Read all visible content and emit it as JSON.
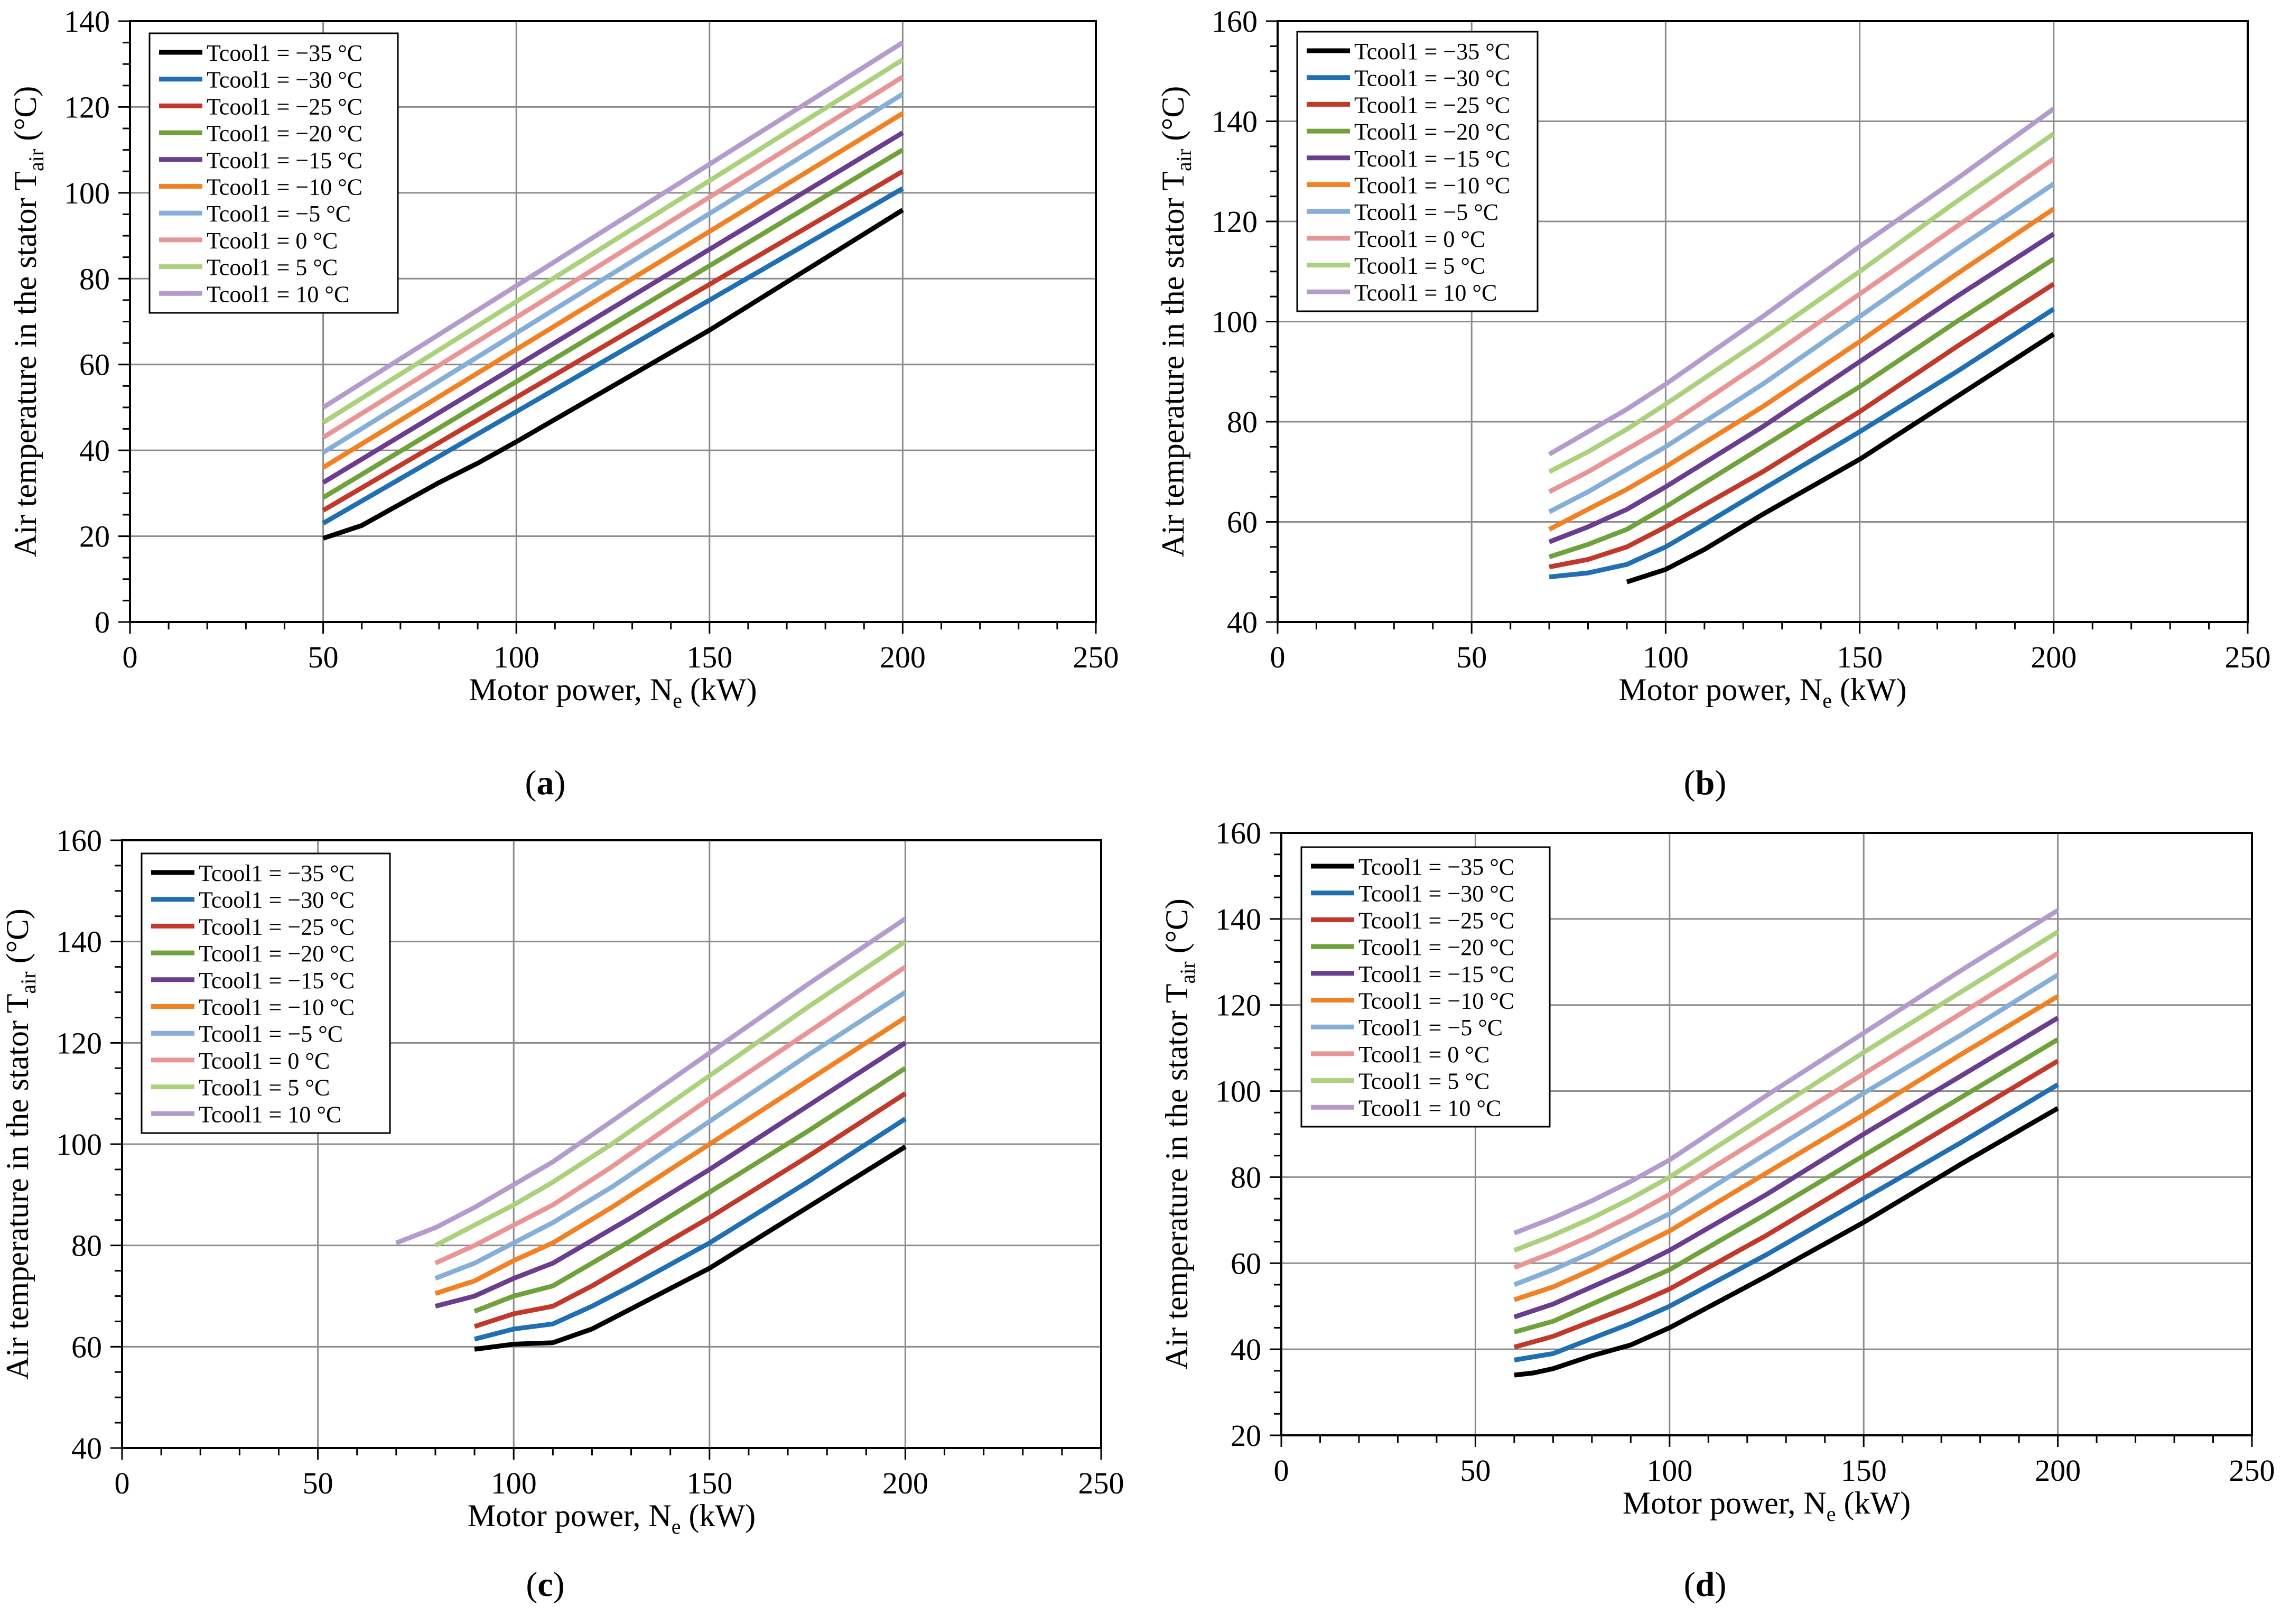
{
  "figure": {
    "legend_labels": [
      "Tcool1 = −35 °C",
      "Tcool1 = −30 °C",
      "Tcool1 = −25 °C",
      "Tcool1 = −20 °C",
      "Tcool1 = −15 °C",
      "Tcool1 = −10 °C",
      "Tcool1 = −5 °C",
      "Tcool1 = 0 °C",
      "Tcool1 = 5 °C",
      "Tcool1 = 10 °C"
    ],
    "series_colors": [
      "#000000",
      "#1f6fb2",
      "#c0392b",
      "#70a23c",
      "#6a3d8f",
      "#f08124",
      "#86aed6",
      "#e89596",
      "#abd17e",
      "#b39ccb"
    ]
  },
  "chart_data": [
    {
      "type": "line",
      "panel_label": "(a)",
      "xlabel_main": "Motor power, N",
      "xlabel_sub": "e",
      "xlabel_tail": " (kW)",
      "ylabel_main": "Air temperature in the stator T",
      "ylabel_sub": "air",
      "ylabel_tail": " (°C)",
      "xlim": [
        0,
        250
      ],
      "ylim": [
        0,
        140
      ],
      "xticks": [
        0,
        50,
        100,
        150,
        200,
        250
      ],
      "yticks": [
        0,
        20,
        40,
        60,
        80,
        100,
        120,
        140
      ],
      "xtick_labels": [
        "0",
        "50",
        "100",
        "150",
        "200",
        "250"
      ],
      "ytick_labels": [
        "0",
        "20",
        "40",
        "60",
        "80",
        "100",
        "120",
        "140"
      ],
      "grid": true,
      "legend_position": "top-left",
      "series": [
        {
          "name": "Tcool1 = −35 °C",
          "x": [
            50,
            60,
            70,
            80,
            90,
            100,
            125,
            150,
            175,
            200
          ],
          "y": [
            19.5,
            22.5,
            27.5,
            32.5,
            37.0,
            42.0,
            55.0,
            68.0,
            82.0,
            96.0
          ]
        },
        {
          "name": "Tcool1 = −30 °C",
          "x": [
            50,
            200
          ],
          "y": [
            23,
            101
          ]
        },
        {
          "name": "Tcool1 = −25 °C",
          "x": [
            50,
            200
          ],
          "y": [
            26,
            105
          ]
        },
        {
          "name": "Tcool1 = −20 °C",
          "x": [
            50,
            200
          ],
          "y": [
            29,
            110
          ]
        },
        {
          "name": "Tcool1 = −15 °C",
          "x": [
            50,
            200
          ],
          "y": [
            32.5,
            114
          ]
        },
        {
          "name": "Tcool1 = −10 °C",
          "x": [
            50,
            200
          ],
          "y": [
            36,
            118.5
          ]
        },
        {
          "name": "Tcool1 = −5 °C",
          "x": [
            50,
            200
          ],
          "y": [
            39.5,
            123
          ]
        },
        {
          "name": "Tcool1 = 0 °C",
          "x": [
            50,
            200
          ],
          "y": [
            43,
            127
          ]
        },
        {
          "name": "Tcool1 = 5 °C",
          "x": [
            50,
            200
          ],
          "y": [
            46.5,
            131
          ]
        },
        {
          "name": "Tcool1 = 10 °C",
          "x": [
            50,
            200
          ],
          "y": [
            50,
            135
          ]
        }
      ]
    },
    {
      "type": "line",
      "panel_label": "(b)",
      "xlabel_main": "Motor power, N",
      "xlabel_sub": "e",
      "xlabel_tail": " (kW)",
      "ylabel_main": "Air temperature in the stator T",
      "ylabel_sub": "air",
      "ylabel_tail": " (°C)",
      "xlim": [
        0,
        250
      ],
      "ylim": [
        40,
        160
      ],
      "xticks": [
        0,
        50,
        100,
        150,
        200,
        250
      ],
      "yticks": [
        40,
        60,
        80,
        100,
        120,
        140,
        160
      ],
      "xtick_labels": [
        "0",
        "50",
        "100",
        "150",
        "200",
        "250"
      ],
      "ytick_labels": [
        "40",
        "60",
        "80",
        "100",
        "120",
        "140",
        "160"
      ],
      "grid": true,
      "legend_position": "top-left",
      "series": [
        {
          "name": "Tcool1 = −35 °C",
          "x": [
            90,
            100,
            110,
            125,
            150,
            175,
            200
          ],
          "y": [
            48,
            50.5,
            54.5,
            61.5,
            72.5,
            85,
            97.5
          ]
        },
        {
          "name": "Tcool1 = −30 °C",
          "x": [
            70,
            80,
            90,
            100,
            110,
            125,
            150,
            175,
            200
          ],
          "y": [
            49,
            49.8,
            51.5,
            55,
            59.5,
            66.5,
            78,
            90,
            102.5
          ]
        },
        {
          "name": "Tcool1 = −25 °C",
          "x": [
            70,
            80,
            90,
            100,
            125,
            150,
            175,
            200
          ],
          "y": [
            51,
            52.5,
            55,
            59,
            70,
            82,
            95,
            107.5
          ]
        },
        {
          "name": "Tcool1 = −20 °C",
          "x": [
            70,
            80,
            90,
            100,
            125,
            150,
            175,
            200
          ],
          "y": [
            53,
            55.5,
            58.5,
            63,
            75,
            87,
            100,
            112.5
          ]
        },
        {
          "name": "Tcool1 = −15 °C",
          "x": [
            70,
            80,
            90,
            100,
            125,
            150,
            175,
            200
          ],
          "y": [
            56,
            59,
            62.5,
            67,
            79,
            92,
            105,
            117.5
          ]
        },
        {
          "name": "Tcool1 = −10 °C",
          "x": [
            70,
            80,
            90,
            100,
            125,
            150,
            175,
            200
          ],
          "y": [
            58.5,
            62.5,
            66.5,
            71,
            83,
            96,
            109.5,
            122.5
          ]
        },
        {
          "name": "Tcool1 = −5 °C",
          "x": [
            70,
            80,
            90,
            100,
            125,
            150,
            175,
            200
          ],
          "y": [
            62,
            66,
            70.5,
            75,
            87.5,
            101,
            114.5,
            127.5
          ]
        },
        {
          "name": "Tcool1 = 0 °C",
          "x": [
            70,
            80,
            90,
            100,
            125,
            150,
            175,
            200
          ],
          "y": [
            66,
            70,
            74.5,
            79,
            92,
            105.5,
            119,
            132.5
          ]
        },
        {
          "name": "Tcool1 = 5 °C",
          "x": [
            70,
            80,
            90,
            100,
            125,
            150,
            175,
            200
          ],
          "y": [
            70,
            74,
            78.5,
            83.5,
            96.5,
            110,
            124,
            137.5
          ]
        },
        {
          "name": "Tcool1 = 10 °C",
          "x": [
            70,
            80,
            90,
            100,
            125,
            150,
            175,
            200
          ],
          "y": [
            73.5,
            78,
            82.5,
            87.5,
            101,
            115,
            128.5,
            142.5
          ]
        }
      ]
    },
    {
      "type": "line",
      "panel_label": "(c)",
      "xlabel_main": "Motor power, N",
      "xlabel_sub": "e",
      "xlabel_tail": " (kW)",
      "ylabel_main": "Air temperature in the stator T",
      "ylabel_sub": "air",
      "ylabel_tail": " (°C)",
      "xlim": [
        0,
        250
      ],
      "ylim": [
        40,
        160
      ],
      "xticks": [
        0,
        50,
        100,
        150,
        200,
        250
      ],
      "yticks": [
        40,
        60,
        80,
        100,
        120,
        140,
        160
      ],
      "xtick_labels": [
        "0",
        "50",
        "100",
        "150",
        "200",
        "250"
      ],
      "ytick_labels": [
        "40",
        "60",
        "80",
        "100",
        "120",
        "140",
        "160"
      ],
      "grid": true,
      "legend_position": "top-left",
      "series": [
        {
          "name": "Tcool1 = −35 °C",
          "x": [
            90,
            100,
            110,
            120,
            130,
            150,
            175,
            200
          ],
          "y": [
            59.5,
            60.5,
            60.8,
            63.5,
            67.5,
            75.5,
            87.5,
            99.5
          ]
        },
        {
          "name": "Tcool1 = −30 °C",
          "x": [
            90,
            100,
            110,
            120,
            130,
            150,
            175,
            200
          ],
          "y": [
            61.5,
            63.5,
            64.5,
            68,
            72,
            80.5,
            92.5,
            105
          ]
        },
        {
          "name": "Tcool1 = −25 °C",
          "x": [
            90,
            100,
            110,
            120,
            130,
            150,
            175,
            200
          ],
          "y": [
            64,
            66.5,
            68,
            72,
            76.5,
            85.5,
            97.5,
            110
          ]
        },
        {
          "name": "Tcool1 = −20 °C",
          "x": [
            90,
            100,
            110,
            120,
            130,
            150,
            175,
            200
          ],
          "y": [
            67,
            70,
            72,
            76.5,
            81,
            90.5,
            102.5,
            115
          ]
        },
        {
          "name": "Tcool1 = −15 °C",
          "x": [
            80,
            90,
            100,
            110,
            120,
            130,
            150,
            175,
            200
          ],
          "y": [
            68,
            70,
            73.5,
            76.5,
            81,
            85.5,
            95,
            107.5,
            120
          ]
        },
        {
          "name": "Tcool1 = −10 °C",
          "x": [
            80,
            90,
            100,
            110,
            125,
            150,
            175,
            200
          ],
          "y": [
            70.5,
            73,
            77,
            80.5,
            87.5,
            100,
            112.5,
            125
          ]
        },
        {
          "name": "Tcool1 = −5 °C",
          "x": [
            80,
            90,
            100,
            110,
            125,
            150,
            175,
            200
          ],
          "y": [
            73.5,
            76.5,
            80.5,
            84.5,
            91.5,
            104.5,
            117.5,
            130
          ]
        },
        {
          "name": "Tcool1 = 0 °C",
          "x": [
            80,
            90,
            100,
            110,
            125,
            150,
            175,
            200
          ],
          "y": [
            76.5,
            80,
            84,
            88,
            95.5,
            109,
            122,
            135
          ]
        },
        {
          "name": "Tcool1 = 5 °C",
          "x": [
            80,
            90,
            100,
            110,
            125,
            150,
            175,
            200
          ],
          "y": [
            80,
            84,
            88,
            92.5,
            100,
            113.5,
            127,
            140
          ]
        },
        {
          "name": "Tcool1 = 10 °C",
          "x": [
            70,
            80,
            90,
            100,
            110,
            125,
            150,
            175,
            200
          ],
          "y": [
            80.5,
            83.5,
            87.5,
            92,
            96.5,
            104.5,
            118,
            131.5,
            144.5
          ]
        }
      ]
    },
    {
      "type": "line",
      "panel_label": "(d)",
      "xlabel_main": "Motor power, N",
      "xlabel_sub": "e",
      "xlabel_tail": " (kW)",
      "ylabel_main": "Air temperature in the stator T",
      "ylabel_sub": "air",
      "ylabel_tail": " (°C)",
      "xlim": [
        0,
        250
      ],
      "ylim": [
        20,
        160
      ],
      "xticks": [
        0,
        50,
        100,
        150,
        200,
        250
      ],
      "yticks": [
        20,
        40,
        60,
        80,
        100,
        120,
        140,
        160
      ],
      "xtick_labels": [
        "0",
        "50",
        "100",
        "150",
        "200",
        "250"
      ],
      "ytick_labels": [
        "20",
        "40",
        "60",
        "80",
        "100",
        "120",
        "140",
        "160"
      ],
      "grid": true,
      "legend_position": "top-left",
      "series": [
        {
          "name": "Tcool1 = −35 °C",
          "x": [
            60,
            65,
            70,
            75,
            80,
            90,
            100,
            125,
            150,
            175,
            200
          ],
          "y": [
            34,
            34.5,
            35.5,
            37,
            38.5,
            41,
            45,
            57,
            69.5,
            83,
            96
          ]
        },
        {
          "name": "Tcool1 = −30 °C",
          "x": [
            60,
            70,
            80,
            90,
            100,
            125,
            150,
            175,
            200
          ],
          "y": [
            37.5,
            39,
            42.5,
            46,
            50,
            62,
            75,
            88,
            101.5
          ]
        },
        {
          "name": "Tcool1 = −25 °C",
          "x": [
            60,
            70,
            80,
            90,
            100,
            125,
            150,
            175,
            200
          ],
          "y": [
            40.5,
            43,
            46.5,
            50,
            54,
            66.5,
            80,
            93.5,
            107
          ]
        },
        {
          "name": "Tcool1 = −20 °C",
          "x": [
            60,
            70,
            80,
            90,
            100,
            125,
            150,
            175,
            200
          ],
          "y": [
            44,
            46.5,
            50.5,
            54.5,
            58.5,
            71.5,
            85,
            98.5,
            112
          ]
        },
        {
          "name": "Tcool1 = −15 °C",
          "x": [
            60,
            70,
            80,
            90,
            100,
            125,
            150,
            175,
            200
          ],
          "y": [
            47.5,
            50.5,
            54.5,
            58.5,
            63,
            76,
            90,
            103.5,
            117
          ]
        },
        {
          "name": "Tcool1 = −10 °C",
          "x": [
            60,
            70,
            80,
            90,
            100,
            125,
            150,
            175,
            200
          ],
          "y": [
            51.5,
            54.5,
            58.5,
            63,
            67.5,
            81,
            94.5,
            108.5,
            122
          ]
        },
        {
          "name": "Tcool1 = −5 °C",
          "x": [
            60,
            70,
            80,
            90,
            100,
            125,
            150,
            175,
            200
          ],
          "y": [
            55,
            58.5,
            62.5,
            67,
            71.5,
            85.5,
            99.5,
            113,
            127
          ]
        },
        {
          "name": "Tcool1 = 0 °C",
          "x": [
            60,
            70,
            80,
            90,
            100,
            125,
            150,
            175,
            200
          ],
          "y": [
            59,
            62.5,
            66.5,
            71,
            76,
            90,
            104,
            118,
            132
          ]
        },
        {
          "name": "Tcool1 = 5 °C",
          "x": [
            60,
            70,
            80,
            90,
            100,
            125,
            150,
            175,
            200
          ],
          "y": [
            63,
            66.5,
            70.5,
            75,
            80,
            94.5,
            109,
            123,
            137
          ]
        },
        {
          "name": "Tcool1 = 10 °C",
          "x": [
            60,
            70,
            80,
            90,
            100,
            125,
            150,
            175,
            200
          ],
          "y": [
            67,
            70.5,
            74.5,
            79,
            84,
            99,
            113.5,
            128,
            142
          ]
        }
      ]
    }
  ]
}
